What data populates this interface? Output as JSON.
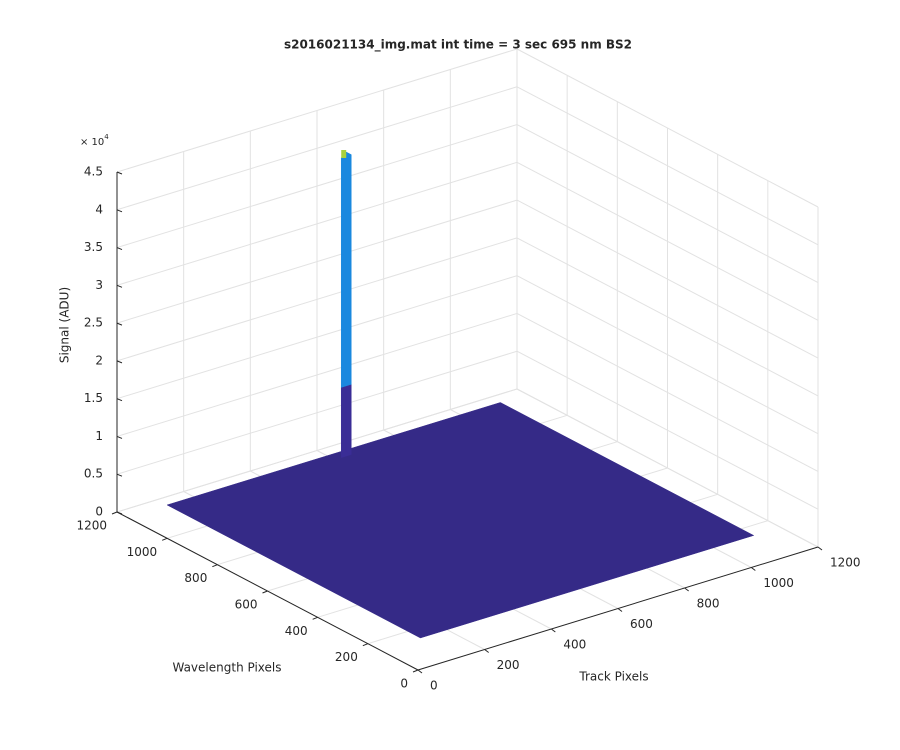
{
  "chart_data": {
    "type": "surface",
    "title": "s2016021134_img.mat int time = 3 sec  695 nm BS2",
    "x_label": "Track Pixels",
    "y_label": "Wavelength Pixels",
    "z_label": "Signal (ADU)",
    "z_scale_label": {
      "base": "× 10",
      "exponent": "4"
    },
    "xlim": [
      0,
      1200
    ],
    "xticks": [
      0,
      200,
      400,
      600,
      800,
      1000,
      1200
    ],
    "ylim": [
      0,
      1200
    ],
    "yticks": [
      0,
      200,
      400,
      600,
      800,
      1000,
      1200
    ],
    "zlim": [
      0,
      4.5
    ],
    "zticks": [
      0,
      0.5,
      1,
      1.5,
      2,
      2.5,
      3,
      3.5,
      4,
      4.5
    ],
    "grid": true,
    "floor": {
      "x": [
        120,
        1120
      ],
      "y": [
        150,
        1160
      ],
      "value": 0,
      "color": "#352a87"
    },
    "peak": {
      "x": [
        620,
        650
      ],
      "y": [
        1130,
        1150
      ],
      "values": [
        0.93,
        3.97
      ],
      "colors": [
        "#3a2d96",
        "#1a88df",
        "#a9d13c"
      ]
    }
  }
}
